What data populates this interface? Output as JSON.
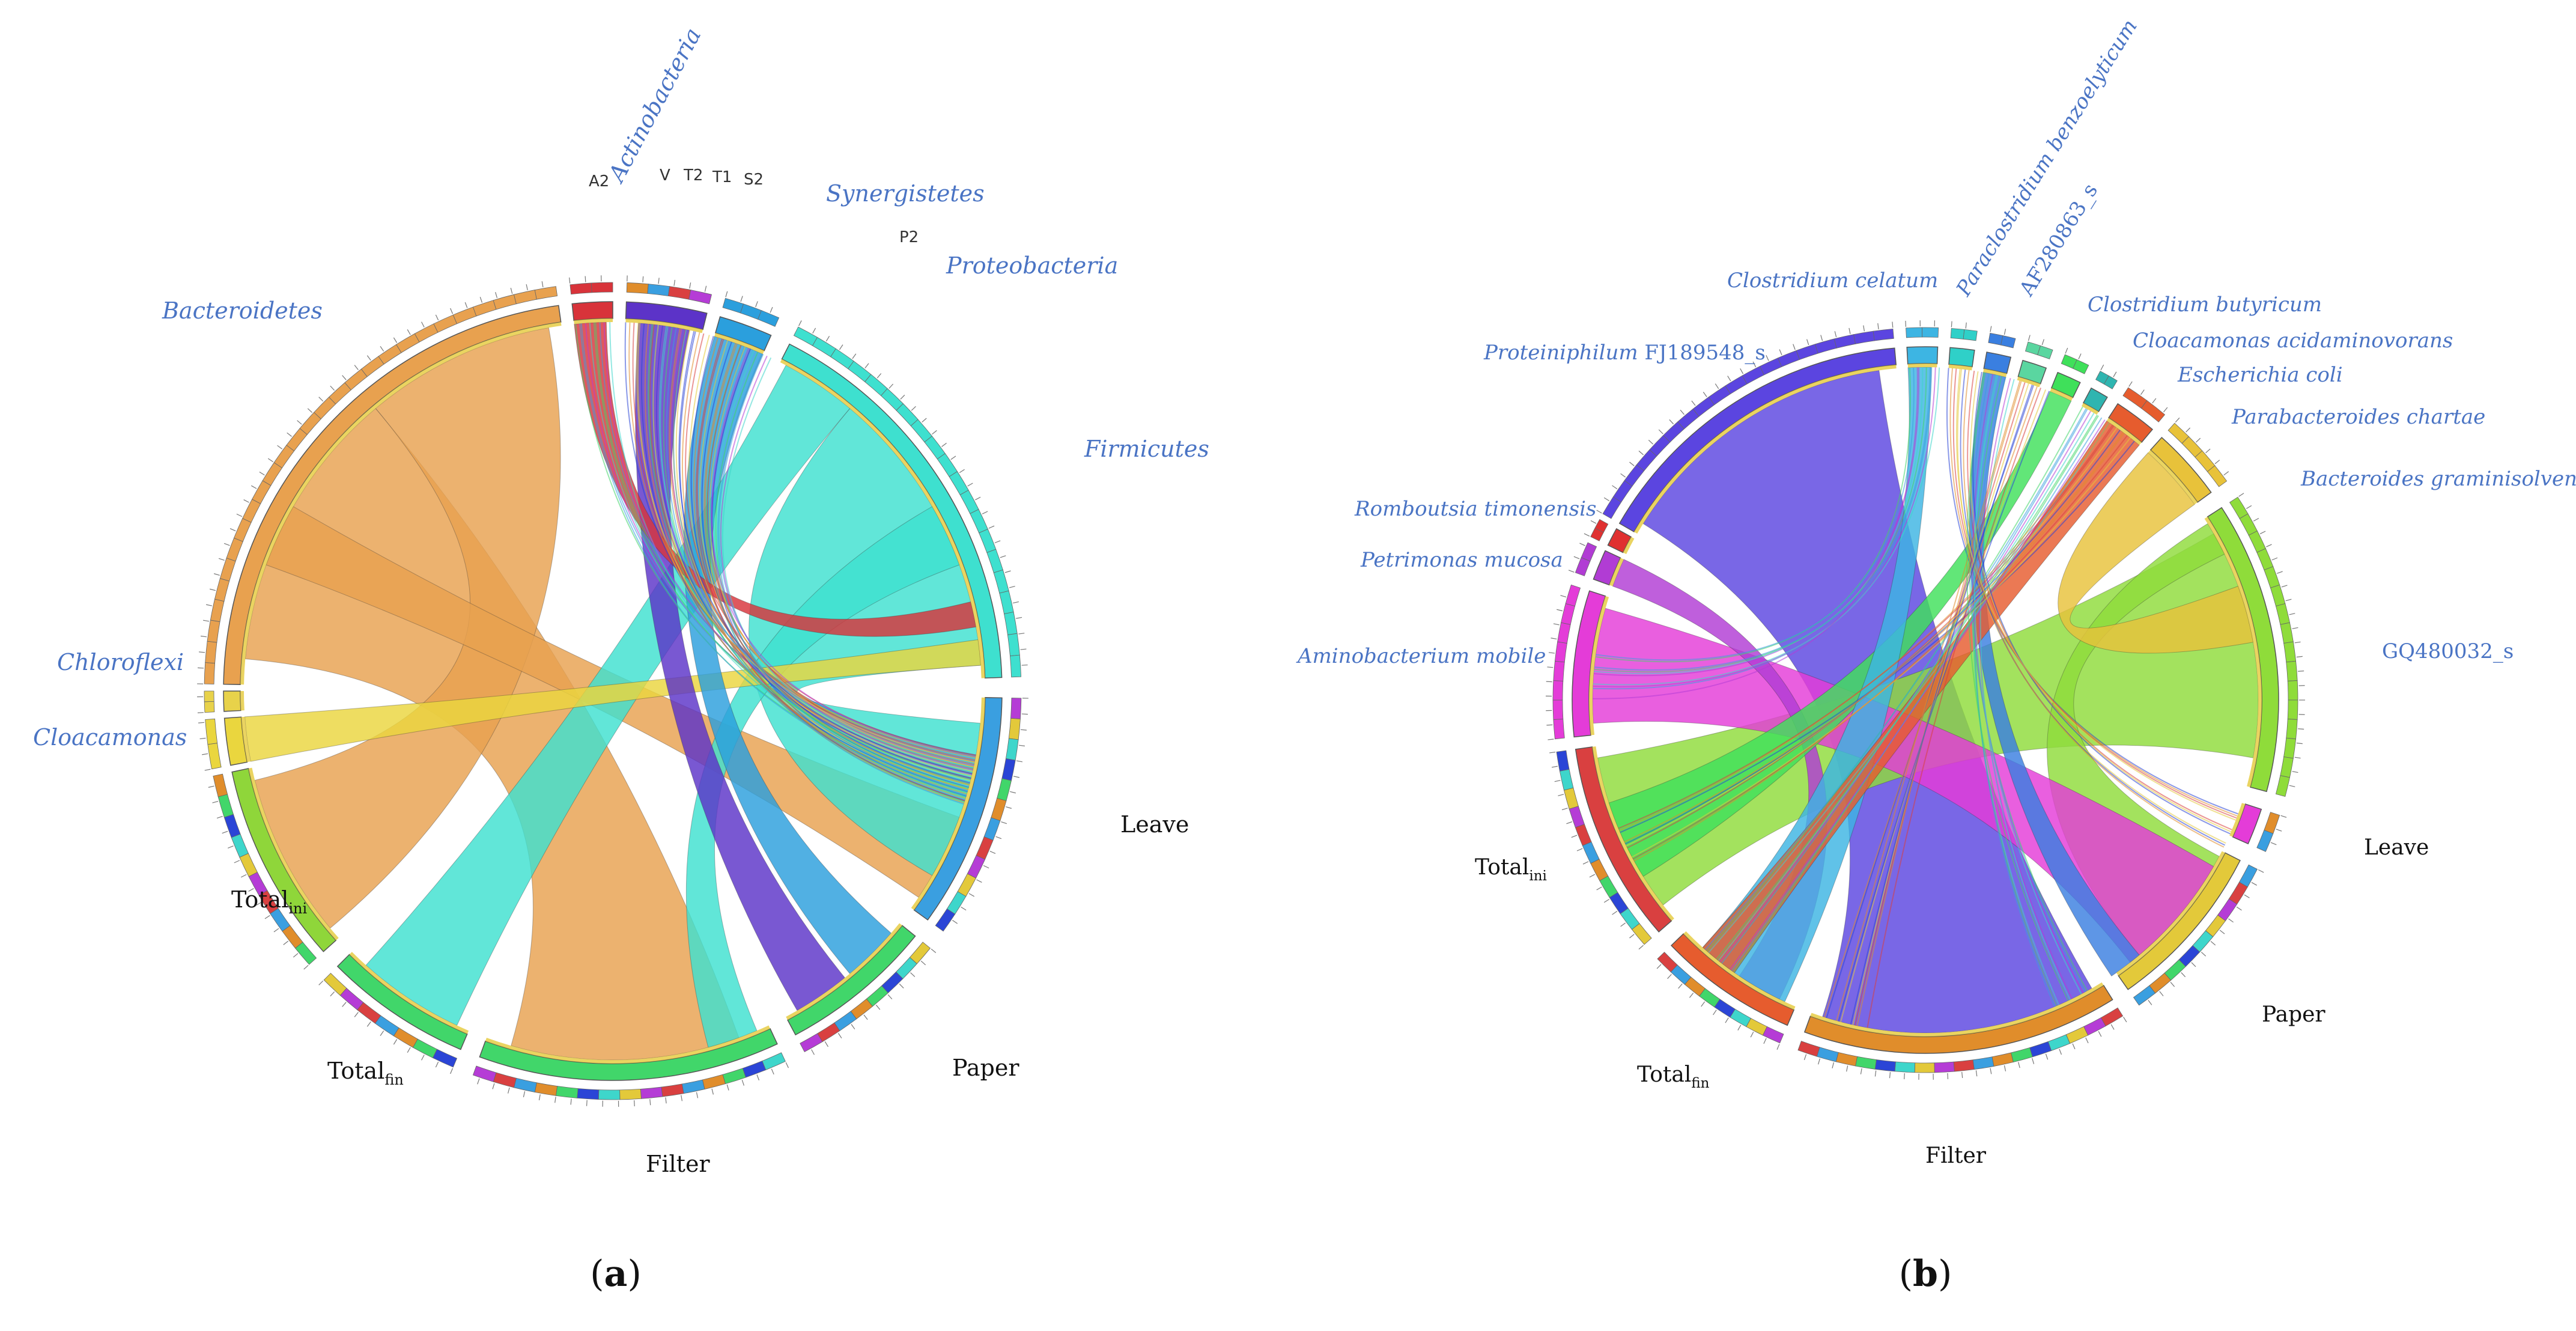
{
  "panels": [
    {
      "id": "a",
      "caption": "a",
      "taxa": [
        {
          "label": "Bacteroidetes",
          "color": "#e8a14f"
        },
        {
          "label": "Firmicutes",
          "color": "#3ee0cf"
        },
        {
          "label": "Proteobacteria",
          "color": "#2b9fdd"
        },
        {
          "label": "Chloroflexi",
          "color": "#ead63e"
        },
        {
          "label": "Cloacamonas",
          "color": "#e8d24a"
        },
        {
          "label": "Actinobacteria",
          "color": "#d8333a"
        },
        {
          "label": "Synergistetes",
          "color": "#5c33c8"
        }
      ],
      "phylum_labels": [
        "Actinobacteria",
        "Synergistetes",
        "Proteobacteria",
        "Bacteroidetes",
        "Firmicutes",
        "Chloroflexi",
        "Cloacamonas"
      ],
      "small_labels": [
        "A2",
        "V",
        "T2",
        "T1",
        "S2",
        "P2"
      ],
      "samples": [
        {
          "label": "Leave",
          "sub": ""
        },
        {
          "label": "Paper",
          "sub": ""
        },
        {
          "label": "Filter",
          "sub": ""
        },
        {
          "label": "Total",
          "sub": "fin"
        },
        {
          "label": "Total",
          "sub": "ini"
        }
      ]
    },
    {
      "id": "b",
      "caption": "b",
      "taxa": [
        {
          "label": "Proteiniphilum FJ189548_s",
          "color": "#5b45e0"
        },
        {
          "label": "GQ480032_s",
          "color": "#8fdc3a"
        },
        {
          "label": "Aminobacterium mobile",
          "color": "#e43cd8"
        },
        {
          "label": "Petrimonas mucosa",
          "color": "#b13cd4"
        },
        {
          "label": "Romboutsia timonensis",
          "color": "#e03030"
        },
        {
          "label": "Clostridium celatum",
          "color": "#3db5e3"
        },
        {
          "label": "Paraclostridium benzoelyticum",
          "color": "#2fd0c8"
        },
        {
          "label": "AF280863_s",
          "color": "#3a7fe0"
        },
        {
          "label": "Clostridium butyricum",
          "color": "#5ad6a0"
        },
        {
          "label": "Cloacamonas acidaminovorans",
          "color": "#3fe05a"
        },
        {
          "label": "Escherichia coli",
          "color": "#2fb5b0"
        },
        {
          "label": "Parabacteroides chartae",
          "color": "#e65c2e"
        },
        {
          "label": "Bacteroides graminisolvens",
          "color": "#e8c23a"
        }
      ],
      "samples": [
        {
          "label": "Leave",
          "sub": ""
        },
        {
          "label": "Paper",
          "sub": ""
        },
        {
          "label": "Filter",
          "sub": ""
        },
        {
          "label": "Total",
          "sub": "fin"
        },
        {
          "label": "Total",
          "sub": "ini"
        }
      ]
    }
  ],
  "colors": {
    "label_blue": "#4a74c4",
    "text_dark": "#111111",
    "axis_gray": "#555555"
  }
}
